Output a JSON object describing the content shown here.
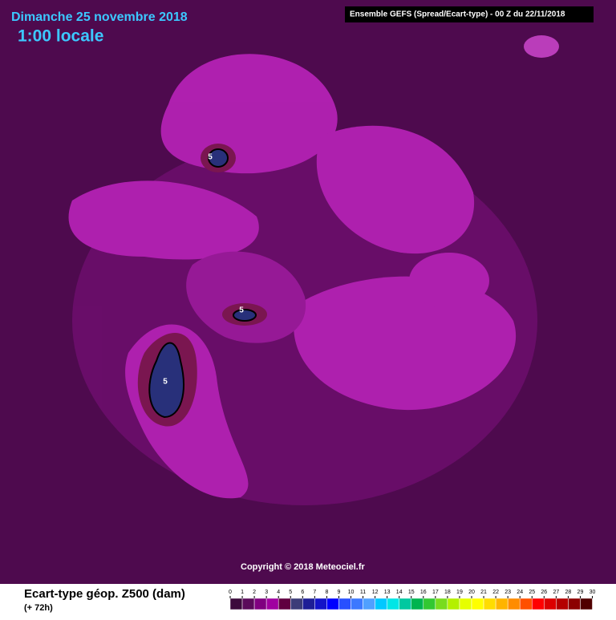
{
  "header": {
    "date": "Dimanche 25 novembre 2018",
    "time": "1:00 locale",
    "source": "Ensemble GEFS  (Spread/Ecart-type) - 00 Z du 22/11/2018"
  },
  "map": {
    "contour_labels": [
      5,
      5,
      5
    ],
    "copyright": "Copyright © 2018 Meteociel.fr"
  },
  "legend": {
    "title": "Ecart-type géop. Z500 (dam)",
    "subtitle": "(+ 72h)",
    "ticks": [
      0,
      1,
      2,
      3,
      4,
      5,
      6,
      7,
      8,
      9,
      10,
      11,
      12,
      13,
      14,
      15,
      16,
      17,
      18,
      19,
      20,
      21,
      22,
      23,
      24,
      25,
      26,
      27,
      28,
      29,
      30
    ],
    "colors": [
      "#3c0a3c",
      "#5a0a5a",
      "#800080",
      "#a000a0",
      "#600040",
      "#3c3c78",
      "#1e1e96",
      "#1414c8",
      "#0000ff",
      "#2850ff",
      "#3c78ff",
      "#50a0ff",
      "#00c8ff",
      "#00e6e6",
      "#00c8a0",
      "#00b450",
      "#32c832",
      "#78dc1e",
      "#b4f000",
      "#e6ff00",
      "#ffff00",
      "#ffdc00",
      "#ffb400",
      "#ff8c00",
      "#ff5000",
      "#ff0000",
      "#dc0000",
      "#b40000",
      "#8c0000",
      "#500000"
    ]
  }
}
